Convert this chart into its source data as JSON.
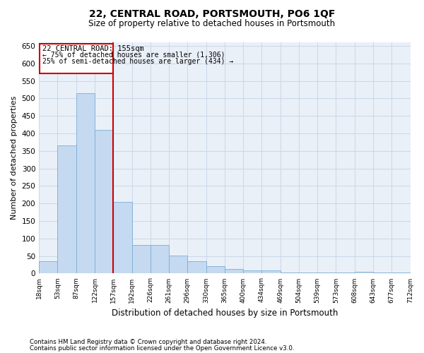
{
  "title": "22, CENTRAL ROAD, PORTSMOUTH, PO6 1QF",
  "subtitle": "Size of property relative to detached houses in Portsmouth",
  "xlabel": "Distribution of detached houses by size in Portsmouth",
  "ylabel": "Number of detached properties",
  "footnote1": "Contains HM Land Registry data © Crown copyright and database right 2024.",
  "footnote2": "Contains public sector information licensed under the Open Government Licence v3.0.",
  "bar_values": [
    35,
    365,
    515,
    410,
    205,
    82,
    82,
    52,
    35,
    22,
    12,
    8,
    8,
    2,
    2,
    2,
    2,
    5,
    2,
    2
  ],
  "bar_labels": [
    "18sqm",
    "53sqm",
    "87sqm",
    "122sqm",
    "157sqm",
    "192sqm",
    "226sqm",
    "261sqm",
    "296sqm",
    "330sqm",
    "365sqm",
    "400sqm",
    "434sqm",
    "469sqm",
    "504sqm",
    "539sqm",
    "573sqm",
    "608sqm",
    "643sqm",
    "677sqm",
    "712sqm"
  ],
  "bar_color": "#c5d9f1",
  "bar_edge_color": "#7aafd4",
  "grid_color": "#c8d8e8",
  "annotation_box_color": "#cc0000",
  "vline_color": "#cc0000",
  "vline_position": 3.5,
  "annotation_title": "22 CENTRAL ROAD: 155sqm",
  "annotation_line1": "← 75% of detached houses are smaller (1,306)",
  "annotation_line2": "25% of semi-detached houses are larger (434) →",
  "ylim": [
    0,
    660
  ],
  "yticks": [
    0,
    50,
    100,
    150,
    200,
    250,
    300,
    350,
    400,
    450,
    500,
    550,
    600,
    650
  ],
  "bg_color": "#eaf0f8"
}
